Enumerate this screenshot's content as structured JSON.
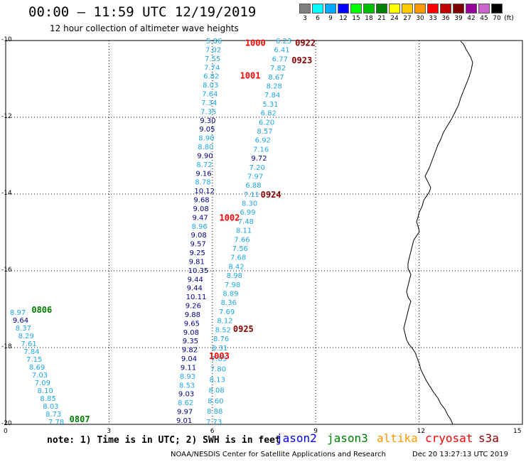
{
  "header": {
    "title": "00:00 — 11:59 UTC 12/19/2019",
    "subtitle": "12 hour collection of altimeter wave heights"
  },
  "color_scale": {
    "unit": "(ft)",
    "bins": [
      {
        "label": "3",
        "color": "#808080"
      },
      {
        "label": "6",
        "color": "#00ffff"
      },
      {
        "label": "9",
        "color": "#00aaff"
      },
      {
        "label": "12",
        "color": "#0000ff"
      },
      {
        "label": "15",
        "color": "#00ff00"
      },
      {
        "label": "18",
        "color": "#00c000"
      },
      {
        "label": "21",
        "color": "#008000"
      },
      {
        "label": "24",
        "color": "#ffff00"
      },
      {
        "label": "27",
        "color": "#ffcc00"
      },
      {
        "label": "30",
        "color": "#ff9900"
      },
      {
        "label": "33",
        "color": "#ff0000"
      },
      {
        "label": "36",
        "color": "#c00000"
      },
      {
        "label": "39",
        "color": "#800000"
      },
      {
        "label": "42",
        "color": "#990099"
      },
      {
        "label": "45",
        "color": "#cc66cc"
      },
      {
        "label": "70",
        "color": "#000000"
      }
    ]
  },
  "axes": {
    "x_ticks": [
      "0",
      "3",
      "6",
      "9",
      "12",
      "15"
    ],
    "y_ticks": [
      "-10",
      "-12",
      "-14",
      "-16",
      "-18",
      "-20"
    ],
    "x_range": [
      0,
      15
    ],
    "y_range": [
      -20,
      -10
    ]
  },
  "colors": {
    "light": "#1ea7e6",
    "dark": "#00008b",
    "jason2": "#0000ff",
    "jason3": "#008000",
    "altika": "#ff9900",
    "cryosat": "#ff0000",
    "s3a": "#8b0000",
    "time_red": "#ff0000",
    "time_darkred": "#8b0000",
    "time_green": "#008000"
  },
  "passes": [
    {
      "time_labels": [
        {
          "text": "1000",
          "lat": -10.05,
          "lon": 6.95,
          "color": "time_red"
        },
        {
          "text": "1001",
          "lat": -10.9,
          "lon": 6.8,
          "color": "time_red"
        },
        {
          "text": "1002",
          "lat": -14.6,
          "lon": 6.2,
          "color": "time_red"
        },
        {
          "text": "1003",
          "lat": -18.2,
          "lon": 5.9,
          "color": "time_red"
        }
      ],
      "values": [
        {
          "v": "5.86",
          "c": "light"
        },
        {
          "v": "7.02",
          "c": "light"
        },
        {
          "v": "7.55",
          "c": "light"
        },
        {
          "v": "7.74",
          "c": "light"
        },
        {
          "v": "6.82",
          "c": "light"
        },
        {
          "v": "8.03",
          "c": "light"
        },
        {
          "v": "7.64",
          "c": "light"
        },
        {
          "v": "7.34",
          "c": "light"
        },
        {
          "v": "7.35",
          "c": "light"
        },
        {
          "v": "9.30",
          "c": "dark"
        },
        {
          "v": "9.05",
          "c": "dark"
        },
        {
          "v": "8.90",
          "c": "light"
        },
        {
          "v": "8.80",
          "c": "light"
        },
        {
          "v": "9.90",
          "c": "dark"
        },
        {
          "v": "8.72",
          "c": "light"
        },
        {
          "v": "9.16",
          "c": "dark"
        },
        {
          "v": "8.78",
          "c": "light"
        },
        {
          "v": "10.12",
          "c": "dark"
        },
        {
          "v": "9.68",
          "c": "dark"
        },
        {
          "v": "9.08",
          "c": "dark"
        },
        {
          "v": "9.47",
          "c": "dark"
        },
        {
          "v": "8.96",
          "c": "light"
        },
        {
          "v": "9.08",
          "c": "dark"
        },
        {
          "v": "9.57",
          "c": "dark"
        },
        {
          "v": "9.25",
          "c": "dark"
        },
        {
          "v": "9.81",
          "c": "dark"
        },
        {
          "v": "10.35",
          "c": "dark"
        },
        {
          "v": "9.44",
          "c": "dark"
        },
        {
          "v": "9.44",
          "c": "dark"
        },
        {
          "v": "10.11",
          "c": "dark"
        },
        {
          "v": "9.26",
          "c": "dark"
        },
        {
          "v": "9.88",
          "c": "dark"
        },
        {
          "v": "9.65",
          "c": "dark"
        },
        {
          "v": "9.08",
          "c": "dark"
        },
        {
          "v": "9.35",
          "c": "dark"
        },
        {
          "v": "9.82",
          "c": "dark"
        },
        {
          "v": "9.04",
          "c": "dark"
        },
        {
          "v": "9.11",
          "c": "dark"
        },
        {
          "v": "8.93",
          "c": "light"
        },
        {
          "v": "8.53",
          "c": "light"
        },
        {
          "v": "9.03",
          "c": "dark"
        },
        {
          "v": "8.62",
          "c": "light"
        },
        {
          "v": "9.97",
          "c": "dark"
        },
        {
          "v": "9.01",
          "c": "dark"
        }
      ]
    },
    {
      "values": [
        {
          "v": "8.31",
          "c": "light"
        },
        {
          "v": "7.85",
          "c": "light"
        },
        {
          "v": "7.80",
          "c": "light"
        },
        {
          "v": "8.13",
          "c": "light"
        },
        {
          "v": "8.08",
          "c": "light"
        },
        {
          "v": "8.60",
          "c": "light"
        },
        {
          "v": "8.88",
          "c": "light"
        },
        {
          "v": "7.73",
          "c": "light"
        }
      ]
    },
    {
      "time_labels": [
        {
          "text": "0922",
          "lat": -10.05,
          "lon": 8.4,
          "color": "time_darkred"
        },
        {
          "text": "0923",
          "lat": -10.5,
          "lon": 8.3,
          "color": "time_darkred"
        },
        {
          "text": "0924",
          "lat": -14.0,
          "lon": 7.4,
          "color": "time_darkred"
        },
        {
          "text": "0925",
          "lat": -17.5,
          "lon": 6.6,
          "color": "time_darkred"
        }
      ],
      "values": [
        {
          "v": "6.23",
          "c": "light"
        },
        {
          "v": "6.41",
          "c": "light"
        },
        {
          "v": "6.77",
          "c": "light"
        },
        {
          "v": "7.82",
          "c": "light"
        },
        {
          "v": "8.67",
          "c": "light"
        },
        {
          "v": "8.28",
          "c": "light"
        },
        {
          "v": "7.84",
          "c": "light"
        },
        {
          "v": "5.31",
          "c": "light"
        },
        {
          "v": "6.82",
          "c": "light"
        },
        {
          "v": "6.20",
          "c": "light"
        },
        {
          "v": "8.57",
          "c": "light"
        },
        {
          "v": "6.92",
          "c": "light"
        },
        {
          "v": "7.16",
          "c": "light"
        },
        {
          "v": "9.72",
          "c": "dark"
        },
        {
          "v": "7.20",
          "c": "light"
        },
        {
          "v": "7.97",
          "c": "light"
        },
        {
          "v": "6.88",
          "c": "light"
        },
        {
          "v": "7.11",
          "c": "light"
        },
        {
          "v": "8.30",
          "c": "light"
        },
        {
          "v": "6.99",
          "c": "light"
        },
        {
          "v": "7.48",
          "c": "light"
        },
        {
          "v": "8.11",
          "c": "light"
        },
        {
          "v": "7.66",
          "c": "light"
        },
        {
          "v": "7.56",
          "c": "light"
        },
        {
          "v": "7.68",
          "c": "light"
        },
        {
          "v": "8.42",
          "c": "light"
        },
        {
          "v": "8.98",
          "c": "light"
        },
        {
          "v": "7.98",
          "c": "light"
        },
        {
          "v": "8.89",
          "c": "light"
        },
        {
          "v": "8.36",
          "c": "light"
        },
        {
          "v": "7.69",
          "c": "light"
        },
        {
          "v": "8.12",
          "c": "light"
        },
        {
          "v": "8.52",
          "c": "light"
        },
        {
          "v": "8.76",
          "c": "light"
        }
      ]
    },
    {
      "time_labels": [
        {
          "text": "0806",
          "lat": -17.0,
          "lon": 0.75,
          "color": "time_green"
        },
        {
          "text": "0807",
          "lat": -19.85,
          "lon": 1.85,
          "color": "time_green"
        }
      ],
      "values": [
        {
          "v": "8.97",
          "c": "light"
        },
        {
          "v": "9.64",
          "c": "dark"
        },
        {
          "v": "8.37",
          "c": "light"
        },
        {
          "v": "8.29",
          "c": "light"
        },
        {
          "v": "7.61",
          "c": "light"
        },
        {
          "v": "7.84",
          "c": "light"
        },
        {
          "v": "7.15",
          "c": "light"
        },
        {
          "v": "8.69",
          "c": "light"
        },
        {
          "v": "7.03",
          "c": "light"
        },
        {
          "v": "7.09",
          "c": "light"
        },
        {
          "v": "8.10",
          "c": "light"
        },
        {
          "v": "8.85",
          "c": "light"
        },
        {
          "v": "8.03",
          "c": "light"
        },
        {
          "v": "8.73",
          "c": "light"
        },
        {
          "v": "7.78",
          "c": "light"
        }
      ]
    }
  ],
  "footer": {
    "note": "note: 1) Time is in UTC; 2) SWH is in feet",
    "satellites": [
      {
        "name": "jason2",
        "color": "jason2"
      },
      {
        "name": "jason3",
        "color": "jason3"
      },
      {
        "name": "altika",
        "color": "altika"
      },
      {
        "name": "cryosat",
        "color": "cryosat"
      },
      {
        "name": "s3a",
        "color": "s3a"
      }
    ],
    "credit": "NOAA/NESDIS Center for Satellite Applications and Research",
    "timestamp": "Dec 20 13:27:13 UTC 2019"
  }
}
